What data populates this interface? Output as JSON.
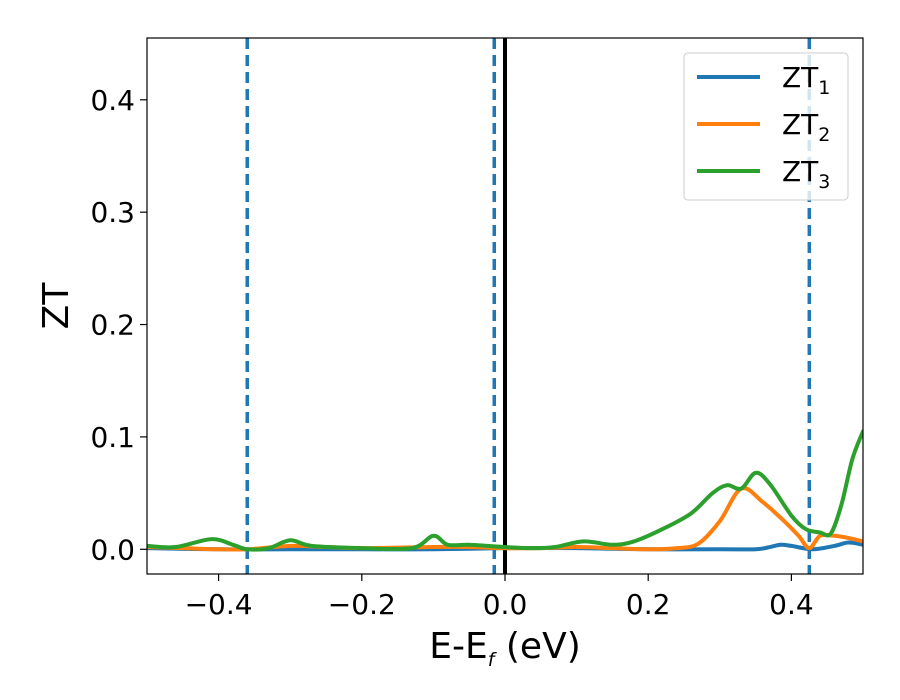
{
  "chart_data": {
    "type": "line",
    "xlabel": "E-E",
    "xlabel_sub": "f",
    "xlabel_unit": "(eV)",
    "ylabel": "ZT",
    "xlim": [
      -0.5,
      0.5
    ],
    "ylim": [
      -0.022,
      0.455
    ],
    "xticks": [
      -0.4,
      -0.2,
      0.0,
      0.2,
      0.4
    ],
    "xtick_labels": [
      "−0.4",
      "−0.2",
      "0.0",
      "0.2",
      "0.4"
    ],
    "yticks": [
      0.0,
      0.1,
      0.2,
      0.3,
      0.4
    ],
    "ytick_labels": [
      "0.0",
      "0.1",
      "0.2",
      "0.3",
      "0.4"
    ],
    "grid": false,
    "legend_position": "top-right",
    "reference_lines": {
      "dashed_vertical_x": [
        -0.36,
        -0.015,
        0.425
      ],
      "dashed_color": "#1f77b4",
      "solid_vertical_x": [
        0.0
      ],
      "solid_color": "#000000"
    },
    "series": [
      {
        "name": "ZT",
        "name_sub": "1",
        "color": "#1f77b4",
        "x": [
          -0.5,
          -0.4,
          -0.3,
          -0.2,
          -0.1,
          0.0,
          0.1,
          0.2,
          0.3,
          0.35,
          0.37,
          0.385,
          0.4,
          0.43,
          0.46,
          0.48,
          0.5
        ],
        "y": [
          0.001,
          0.0,
          0.0,
          0.0,
          0.0,
          0.001,
          0.001,
          0.0,
          0.0,
          0.0,
          0.002,
          0.004,
          0.003,
          0.0,
          0.003,
          0.006,
          0.004
        ]
      },
      {
        "name": "ZT",
        "name_sub": "2",
        "color": "#ff7f0e",
        "x": [
          -0.5,
          -0.45,
          -0.4,
          -0.36,
          -0.3,
          -0.25,
          -0.2,
          -0.1,
          -0.05,
          0.0,
          0.05,
          0.1,
          0.15,
          0.2,
          0.24,
          0.27,
          0.3,
          0.33,
          0.36,
          0.39,
          0.41,
          0.425,
          0.44,
          0.46,
          0.48,
          0.5
        ],
        "y": [
          0.002,
          0.001,
          0.0,
          0.0,
          0.003,
          0.002,
          0.001,
          0.002,
          0.002,
          0.001,
          0.001,
          0.002,
          0.001,
          0.0,
          0.001,
          0.005,
          0.025,
          0.054,
          0.042,
          0.025,
          0.012,
          0.001,
          0.012,
          0.012,
          0.01,
          0.007
        ]
      },
      {
        "name": "ZT",
        "name_sub": "3",
        "color": "#2ca02c",
        "x": [
          -0.5,
          -0.46,
          -0.41,
          -0.38,
          -0.36,
          -0.33,
          -0.3,
          -0.27,
          -0.2,
          -0.13,
          -0.1,
          -0.08,
          -0.05,
          0.0,
          0.04,
          0.07,
          0.11,
          0.15,
          0.18,
          0.22,
          0.26,
          0.29,
          0.31,
          0.33,
          0.35,
          0.37,
          0.4,
          0.42,
          0.44,
          0.455,
          0.47,
          0.485,
          0.5
        ],
        "y": [
          0.003,
          0.002,
          0.009,
          0.004,
          0.0,
          0.001,
          0.008,
          0.003,
          0.001,
          0.001,
          0.012,
          0.004,
          0.004,
          0.002,
          0.001,
          0.002,
          0.007,
          0.004,
          0.007,
          0.018,
          0.032,
          0.05,
          0.057,
          0.054,
          0.068,
          0.058,
          0.03,
          0.018,
          0.015,
          0.014,
          0.04,
          0.08,
          0.105
        ]
      }
    ]
  }
}
